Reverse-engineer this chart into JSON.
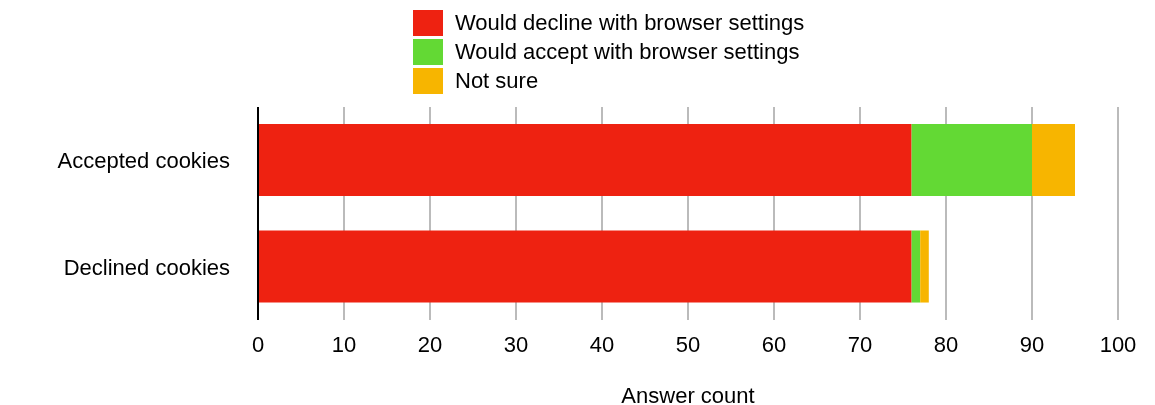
{
  "chart_data": {
    "type": "bar",
    "orientation": "horizontal",
    "stacked": true,
    "xlabel": "Answer count",
    "categories": [
      "Accepted cookies",
      "Declined cookies"
    ],
    "series": [
      {
        "name": "Would decline with browser settings",
        "color": "#ee2211",
        "values": [
          76,
          76
        ]
      },
      {
        "name": "Would accept with browser settings",
        "color": "#63d934",
        "values": [
          14,
          1
        ]
      },
      {
        "name": "Not sure",
        "color": "#f7b500",
        "values": [
          5,
          1
        ]
      }
    ],
    "xlim": [
      0,
      100
    ],
    "xticks": [
      0,
      10,
      20,
      30,
      40,
      50,
      60,
      70,
      80,
      90,
      100
    ],
    "grid": "x",
    "legend": "top"
  }
}
